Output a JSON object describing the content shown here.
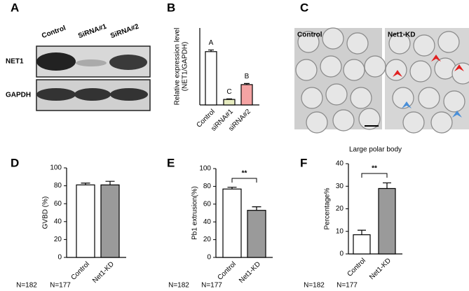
{
  "panel_labels": [
    "A",
    "B",
    "C",
    "D",
    "E",
    "F"
  ],
  "blot": {
    "lanes": [
      "Control",
      "SiRNA#1",
      "SiRNA#2"
    ],
    "rows": [
      "NET1",
      "GAPDH"
    ]
  },
  "micrograph": {
    "panels": [
      "Control",
      "Net1-KD"
    ]
  },
  "chart_data": [
    {
      "type": "bar",
      "ylabel": [
        "Relative expression level",
        "(NET1/GAPDH)"
      ],
      "categories": [
        "Control",
        "siRNA#1",
        "siRNA#2"
      ],
      "values": [
        0.97,
        0.1,
        0.37
      ],
      "errors": [
        0.03,
        0.01,
        0.02
      ],
      "colors": [
        "#ffffff",
        "#e6ebbf",
        "#f4a3a3"
      ],
      "ylim": [
        0,
        1.4
      ],
      "letters": [
        "A",
        "C",
        "B"
      ]
    },
    {
      "type": "bar",
      "ylabel": "GVBD (%)",
      "categories": [
        "Control",
        "Net1-KD"
      ],
      "values": [
        81,
        81
      ],
      "errors": [
        2,
        4
      ],
      "colors": [
        "#ffffff",
        "#9a9a9a"
      ],
      "ylim": [
        0,
        100
      ],
      "yticks": [
        0,
        20,
        40,
        60,
        80,
        100
      ],
      "sample_sizes": [
        "N=182",
        "N=177"
      ]
    },
    {
      "type": "bar",
      "ylabel": "Pb1 extrusion(%)",
      "categories": [
        "Control",
        "Net1-KD"
      ],
      "values": [
        77,
        53
      ],
      "errors": [
        2,
        4
      ],
      "colors": [
        "#ffffff",
        "#9a9a9a"
      ],
      "ylim": [
        0,
        100
      ],
      "yticks": [
        0,
        20,
        40,
        60,
        80,
        100
      ],
      "significance": "**",
      "sample_sizes": [
        "N=182",
        "N=177"
      ]
    },
    {
      "type": "bar",
      "title": "Large polar body",
      "ylabel": "Percentage%",
      "categories": [
        "Control",
        "Net1-KD"
      ],
      "values": [
        8.5,
        29
      ],
      "errors": [
        2,
        2.5
      ],
      "colors": [
        "#ffffff",
        "#9a9a9a"
      ],
      "ylim": [
        0,
        40
      ],
      "yticks": [
        0,
        10,
        20,
        30,
        40
      ],
      "significance": "**",
      "sample_sizes": [
        "N=182",
        "N=177"
      ]
    }
  ]
}
